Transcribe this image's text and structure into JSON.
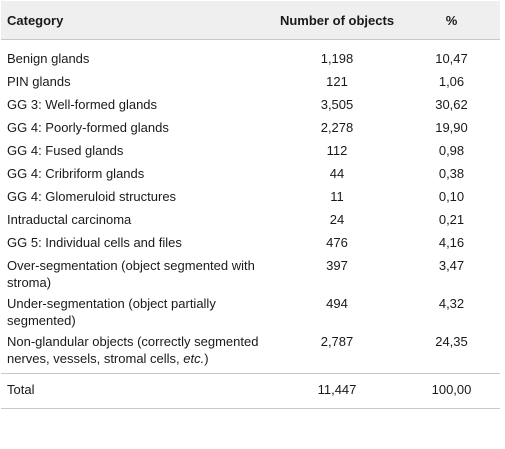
{
  "headers": {
    "category": "Category",
    "count": "Number of objects",
    "pct": "%"
  },
  "rows": [
    {
      "category": "Benign glands",
      "count": "1,198",
      "pct": "10,47"
    },
    {
      "category": "PIN glands",
      "count": "121",
      "pct": "1,06"
    },
    {
      "category": "GG 3: Well-formed glands",
      "count": "3,505",
      "pct": "30,62"
    },
    {
      "category": "GG 4: Poorly-formed glands",
      "count": "2,278",
      "pct": "19,90"
    },
    {
      "category": "GG 4: Fused glands",
      "count": "112",
      "pct": "0,98"
    },
    {
      "category": "GG 4: Cribriform glands",
      "count": "44",
      "pct": "0,38"
    },
    {
      "category": "GG 4: Glomeruloid structures",
      "count": "11",
      "pct": "0,10"
    },
    {
      "category": "Intraductal carcinoma",
      "count": "24",
      "pct": "0,21"
    },
    {
      "category": "GG 5: Individual cells and files",
      "count": "476",
      "pct": "4,16"
    },
    {
      "category": "Over-segmentation (object segmented with stroma)",
      "count": "397",
      "pct": "3,47"
    },
    {
      "category": "Under-segmentation (object partially segmented)",
      "count": "494",
      "pct": "4,32"
    },
    {
      "category_main": "Non-glandular objects (correctly segmented nerves, vessels, stromal cells, ",
      "category_italic": "etc.",
      "category_end": ")",
      "count": "2,787",
      "pct": "24,35"
    }
  ],
  "total": {
    "category": "Total",
    "count": "11,447",
    "pct": "100,00"
  }
}
